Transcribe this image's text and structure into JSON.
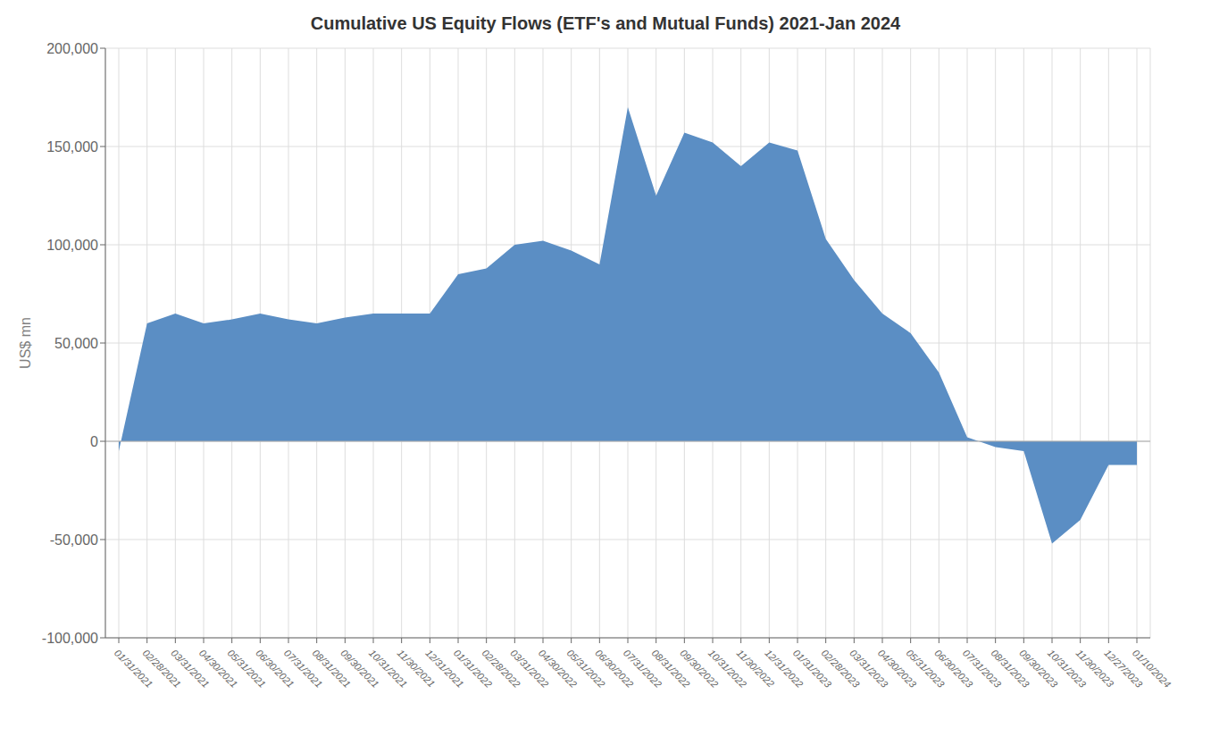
{
  "chart_data": {
    "type": "area",
    "title": "Cumulative US Equity Flows (ETF's and Mutual Funds) 2021-Jan 2024",
    "y_label": "US$ mn",
    "categories": [
      "01/31/2021",
      "02/28/2021",
      "03/31/2021",
      "04/30/2021",
      "05/31/2021",
      "06/30/2021",
      "07/31/2021",
      "08/31/2021",
      "09/30/2021",
      "10/31/2021",
      "11/30/2021",
      "12/31/2021",
      "01/31/2022",
      "02/28/2022",
      "03/31/2022",
      "04/30/2022",
      "05/31/2022",
      "06/30/2022",
      "07/31/2022",
      "08/31/2022",
      "09/30/2022",
      "10/31/2022",
      "11/30/2022",
      "12/31/2022",
      "01/31/2023",
      "02/28/2023",
      "03/31/2023",
      "04/30/2023",
      "05/31/2023",
      "06/30/2023",
      "07/31/2023",
      "08/31/2023",
      "09/30/2023",
      "10/31/2023",
      "11/30/2023",
      "12/27/2023",
      "01/10/2024"
    ],
    "values": [
      -5000,
      60000,
      65000,
      60000,
      62000,
      65000,
      62000,
      60000,
      63000,
      65000,
      65000,
      65000,
      85000,
      88000,
      100000,
      102000,
      97000,
      90000,
      170000,
      125000,
      157000,
      152000,
      140000,
      152000,
      148000,
      103000,
      82000,
      65000,
      55000,
      35000,
      2000,
      -3000,
      -5000,
      -52000,
      -40000,
      -12000,
      -12000
    ],
    "color": "#5B8EC4",
    "ylim": [
      -100000,
      200000
    ],
    "yticks": [
      {
        "value": -100000,
        "label": "-100,000"
      },
      {
        "value": -50000,
        "label": "-50,000"
      },
      0,
      {
        "value": 50000,
        "label": "50,000"
      },
      {
        "value": 100000,
        "label": "100,000"
      },
      {
        "value": 150000,
        "label": "150,000"
      },
      {
        "value": 200000,
        "label": "200,000"
      }
    ],
    "grid": true
  }
}
